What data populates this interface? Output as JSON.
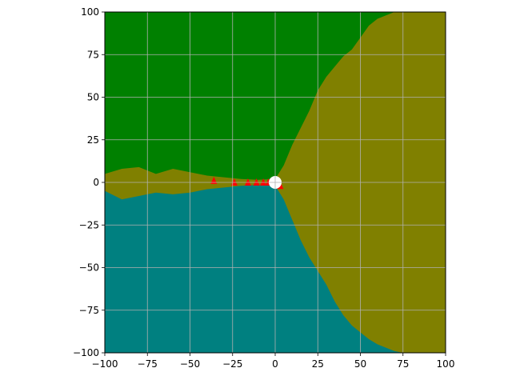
{
  "chart_data": {
    "type": "heatmap",
    "title": "",
    "xlabel": "",
    "ylabel": "",
    "xlim": [
      -100,
      100
    ],
    "ylim": [
      -100,
      100
    ],
    "grid": true,
    "xticks": [
      -100,
      -75,
      -50,
      -25,
      0,
      25,
      50,
      75,
      100
    ],
    "yticks": [
      -100,
      -75,
      -50,
      -25,
      0,
      25,
      50,
      75,
      100
    ],
    "xtick_labels": [
      "−100",
      "−75",
      "−50",
      "−25",
      "0",
      "25",
      "50",
      "75",
      "100"
    ],
    "ytick_labels": [
      "−100",
      "−75",
      "−50",
      "−25",
      "0",
      "25",
      "50",
      "75",
      "100"
    ],
    "region_colors": {
      "upper": "#008000",
      "lower": "#008080",
      "right": "#808000"
    },
    "marker_color": "#ff0000",
    "origin_marker_color": "#ffffff",
    "upper_boundary": [
      [
        -100,
        5
      ],
      [
        -90,
        8
      ],
      [
        -80,
        9
      ],
      [
        -70,
        5
      ],
      [
        -60,
        8
      ],
      [
        -50,
        6
      ],
      [
        -40,
        4
      ],
      [
        -30,
        3
      ],
      [
        -20,
        2
      ],
      [
        -10,
        1.5
      ],
      [
        0,
        2
      ],
      [
        5,
        10
      ],
      [
        10,
        22
      ],
      [
        15,
        32
      ],
      [
        20,
        42
      ],
      [
        25,
        54
      ],
      [
        30,
        62
      ],
      [
        35,
        68
      ],
      [
        40,
        74
      ],
      [
        45,
        78
      ],
      [
        50,
        85
      ],
      [
        55,
        92
      ],
      [
        60,
        96
      ],
      [
        65,
        98
      ],
      [
        70,
        100
      ]
    ],
    "lower_boundary": [
      [
        -100,
        -5
      ],
      [
        -90,
        -10
      ],
      [
        -80,
        -8
      ],
      [
        -70,
        -6
      ],
      [
        -60,
        -7
      ],
      [
        -50,
        -6
      ],
      [
        -40,
        -4
      ],
      [
        -30,
        -3
      ],
      [
        -20,
        -2
      ],
      [
        -10,
        -1.5
      ],
      [
        0,
        -2
      ],
      [
        5,
        -10
      ],
      [
        10,
        -22
      ],
      [
        15,
        -34
      ],
      [
        20,
        -44
      ],
      [
        25,
        -52
      ],
      [
        30,
        -60
      ],
      [
        35,
        -70
      ],
      [
        40,
        -78
      ],
      [
        45,
        -84
      ],
      [
        50,
        -88
      ],
      [
        55,
        -92
      ],
      [
        60,
        -95
      ],
      [
        65,
        -97
      ],
      [
        70,
        -99
      ],
      [
        75,
        -100
      ]
    ],
    "red_markers": [
      [
        -36,
        1
      ],
      [
        -24,
        0
      ],
      [
        -16,
        0
      ],
      [
        -11,
        0
      ],
      [
        -7,
        0
      ],
      [
        -4,
        0
      ],
      [
        -2,
        0
      ],
      [
        -1,
        0
      ],
      [
        1,
        0
      ],
      [
        3,
        -2
      ]
    ],
    "origin_point": [
      0,
      0
    ]
  }
}
